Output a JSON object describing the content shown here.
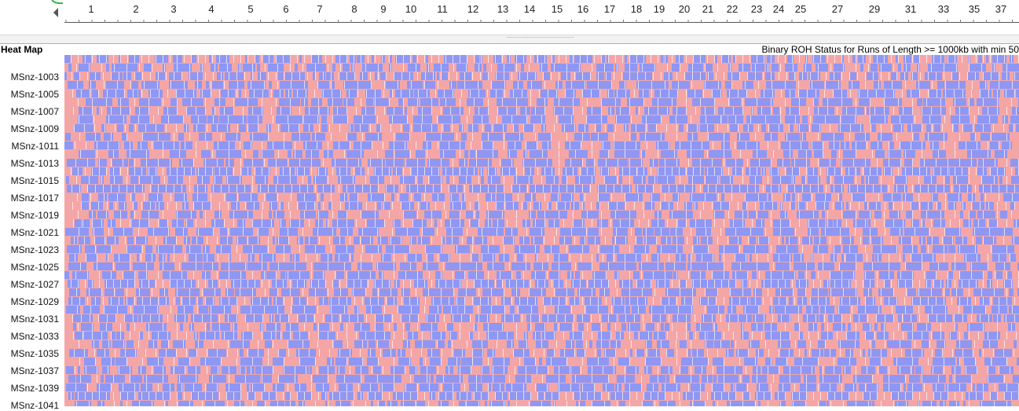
{
  "ruler": {
    "labels": [
      "1",
      "2",
      "3",
      "4",
      "5",
      "6",
      "7",
      "8",
      "9",
      "10",
      "11",
      "12",
      "13",
      "14",
      "15",
      "16",
      "17",
      "18",
      "19",
      "20",
      "21",
      "22",
      "23",
      "24",
      "25",
      "27",
      "29",
      "31",
      "33",
      "35",
      "37"
    ]
  },
  "track": {
    "title": "Heat Map",
    "subtitle": "Binary ROH Status for Runs of Length >= 1000kb with min 50"
  },
  "rows": {
    "labels": [
      "MSnz-1003",
      "MSnz-1005",
      "MSnz-1007",
      "MSnz-1009",
      "MSnz-1011",
      "MSnz-1013",
      "MSnz-1015",
      "MSnz-1017",
      "MSnz-1019",
      "MSnz-1021",
      "MSnz-1023",
      "MSnz-1025",
      "MSnz-1027",
      "MSnz-1029",
      "MSnz-1031",
      "MSnz-1033",
      "MSnz-1035",
      "MSnz-1037",
      "MSnz-1039",
      "MSnz-1041"
    ]
  }
}
